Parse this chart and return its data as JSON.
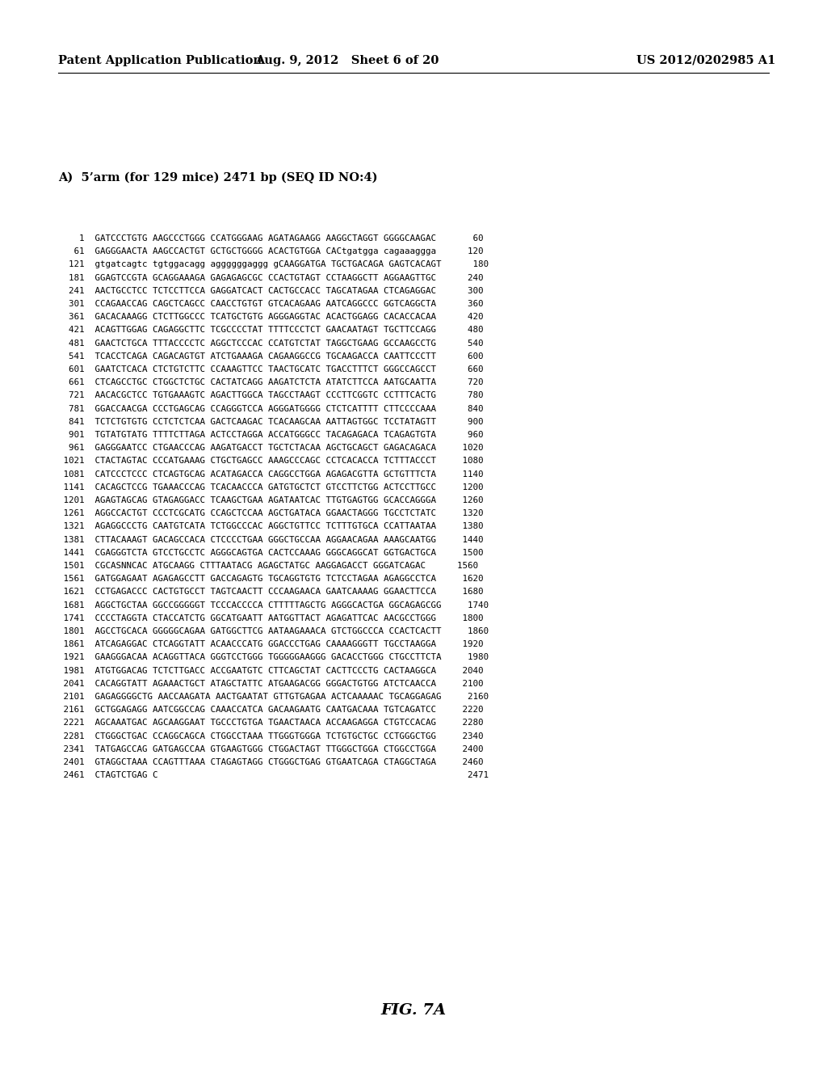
{
  "header_left": "Patent Application Publication",
  "header_mid": "Aug. 9, 2012   Sheet 6 of 20",
  "header_right": "US 2012/0202985 A1",
  "section_title": "A)  5’arm (for 129 mice) 2471 bp (SEQ ID NO:4)",
  "figure_label": "FIG. 7A",
  "sequence_lines": [
    "    1  GATCCCTGTG AAGCCCTGGG CCATGGGAAG AGATAGAAGG AAGGCTAGGT GGGGCAAGAC       60",
    "   61  GAGGGAACTA AAGCCACTGT GCTGCTGGGG ACACTGTGGA CACtgatgga cagaaaggga      120",
    "  121  gtgatcagtc tgtggacagg aggggggaggg gCAAGGATGA TGCTGACAGA GAGTCACAGT      180",
    "  181  GGAGTCCGTA GCAGGAAAGA GAGAGAGCGC CCACTGTAGT CCTAAGGCTT AGGAAGTTGC      240",
    "  241  AACTGCCTCC TCTCCTTCCA GAGGATCACT CACTGCCACC TAGCATAGAA CTCAGAGGAC      300",
    "  301  CCAGAACCAG CAGCTCAGCC CAACCTGTGT GTCACAGAAG AATCAGGCCC GGTCAGGCTA      360",
    "  361  GACACAAAGG CTCTTGGCCC TCATGCTGTG AGGGAGGTAC ACACTGGAGG CACACCACAA      420",
    "  421  ACAGTTGGAG CAGAGGCTTC TCGCCCCTAT TTTTCCCTCT GAACAATAGT TGCTTCCAGG      480",
    "  481  GAACTCTGCA TTTACCCCTC AGGCTCCCAC CCATGTCTAT TAGGCTGAAG GCCAAGCCTG      540",
    "  541  TCACCTCAGA CAGACAGTGT ATCTGAAAGA CAGAAGGCCG TGCAAGACCA CAATTCCCTT      600",
    "  601  GAATCTCACA CTCTGTCTTC CCAAAGTTCC TAACTGCATC TGACCTTTCT GGGCCAGCCT      660",
    "  661  CTCAGCCTGC CTGGCTCTGC CACTATCAGG AAGATCTCTA ATATCTTCCA AATGCAATTA      720",
    "  721  AACACGCTCC TGTGAAAGTC AGACTTGGCA TAGCCTAAGT CCCTTCGGTC CCTTTCACTG      780",
    "  781  GGACCAACGA CCCTGAGCAG CCAGGGTCCA AGGGATGGGG CTCTCATTTT CTTCCCCAAA      840",
    "  841  TCTCTGTGTG CCTCTCTCAA GACTCAAGAC TCACAAGCAA AATTAGTGGC TCCTATAGTT      900",
    "  901  TGTATGTATG TTTTCTTAGA ACTCCTAGGA ACCATGGGCC TACAGAGACA TCAGAGTGTA      960",
    "  961  GAGGGAATCC CTGAACCCAG AAGATGACCT TGCTCTACAA AGCTGCAGCT GAGACAGACA     1020",
    " 1021  CTACTAGTAC CCCATGAAAG CTGCTGAGCC AAAGCCCAGC CCTCACACCA TCTTTACCCT     1080",
    " 1081  CATCCCTCCC CTCAGTGCAG ACATAGACCA CAGGCCTGGA AGAGACGTTA GCTGTTTCTA     1140",
    " 1141  CACAGCTCCG TGAAACCCAG TCACAACCCA GATGTGCTCT GTCCTTCTGG ACTCCTTGCC     1200",
    " 1201  AGAGTAGCAG GTAGAGGACC TCAAGCTGAA AGATAATCAC TTGTGAGTGG GCACCAGGGA     1260",
    " 1261  AGGCCACTGT CCCTCGCATG CCAGCTCCAA AGCTGATACA GGAACTAGGG TGCCTCTATC     1320",
    " 1321  AGAGGCCCTG CAATGTCATA TCTGGCCCAC AGGCTGTTCC TCTTTGTGCA CCATTAATAA     1380",
    " 1381  CTTACAAAGT GACAGCCACA CTCCCCTGAA GGGCTGCCAA AGGAACAGAA AAAGCAATGG     1440",
    " 1441  CGAGGGTCTA GTCCTGCCTC AGGGCAGTGA CACTCCAAAG GGGCAGGCAT GGTGACTGCA     1500",
    " 1501  CGCASNNCAC ATGCAAGG CTTTAATACG AGAGCTATGC AAGGAGACCT GGGATCAGAC      1560",
    " 1561  GATGGAGAAT AGAGAGCCTT GACCAGAGTG TGCAGGTGTG TCTCCTAGAA AGAGGCCTCA     1620",
    " 1621  CCTGAGACCC CACTGTGCCT TAGTCAACTT CCCAAGAACA GAATCAAAAG GGAACTTCCA     1680",
    " 1681  AGGCTGCTAA GGCCGGGGGT TCCCACCCCA CTTTTTAGCTG AGGGCACTGA GGCAGAGCGG     1740",
    " 1741  CCCCTAGGTA CTACCATCTG GGCATGAATT AATGGTTACT AGAGATTCAC AACGCCTGGG     1800",
    " 1801  AGCCTGCACA GGGGGCAGAA GATGGCTTCG AATAAGAAACA GTCTGGCCCA CCACTCACTT     1860",
    " 1861  ATCAGAGGAC CTCAGGTATT ACAACCCATG GGACCCTGAG CAAAAGGGTT TGCCTAAGGA     1920",
    " 1921  GAAGGGACAA ACAGGTTACA GGGTCCTGGG TGGGGGAAGGG GACACCTGGG CTGCCTTCTA     1980",
    " 1981  ATGTGGACAG TCTCTTGACC ACCGAATGTC CTTCAGCTAT CACTTCCCTG CACTAAGGCA     2040",
    " 2041  CACAGGTATT AGAAACTGCT ATAGCTATTC ATGAAGACGG GGGACTGTGG ATCTCAACCA     2100",
    " 2101  GAGAGGGGCTG AACCAAGATA AACTGAATAT GTTGTGAGAA ACTCAAAAAC TGCAGGAGAG     2160",
    " 2161  GCTGGAGAGG AATCGGCCAG CAAACCATCA GACAAGAATG CAATGACAAA TGTCAGATCC     2220",
    " 2221  AGCAAATGAC AGCAAGGAAT TGCCCTGTGA TGAACTAACA ACCAAGAGGA CTGTCCACAG     2280",
    " 2281  CTGGGCTGAC CCAGGCAGCA CTGGCCTAAA TTGGGTGGGA TCTGTGCTGC CCTGGGCTGG     2340",
    " 2341  TATGAGCCAG GATGAGCCAA GTGAAGTGGG CTGGACTAGT TTGGGCTGGA CTGGCCTGGA     2400",
    " 2401  GTAGGCTAAA CCAGTTTAAA CTAGAGTAGG CTGGGCTGAG GTGAATCAGA CTAGGCTAGA     2460",
    " 2461  CTAGTCTGAG C                                                           2471"
  ],
  "background_color": "#ffffff",
  "text_color": "#000000",
  "header_fontsize": 10.5,
  "title_fontsize": 10.5,
  "seq_fontsize": 7.8,
  "fig_label_fontsize": 14
}
